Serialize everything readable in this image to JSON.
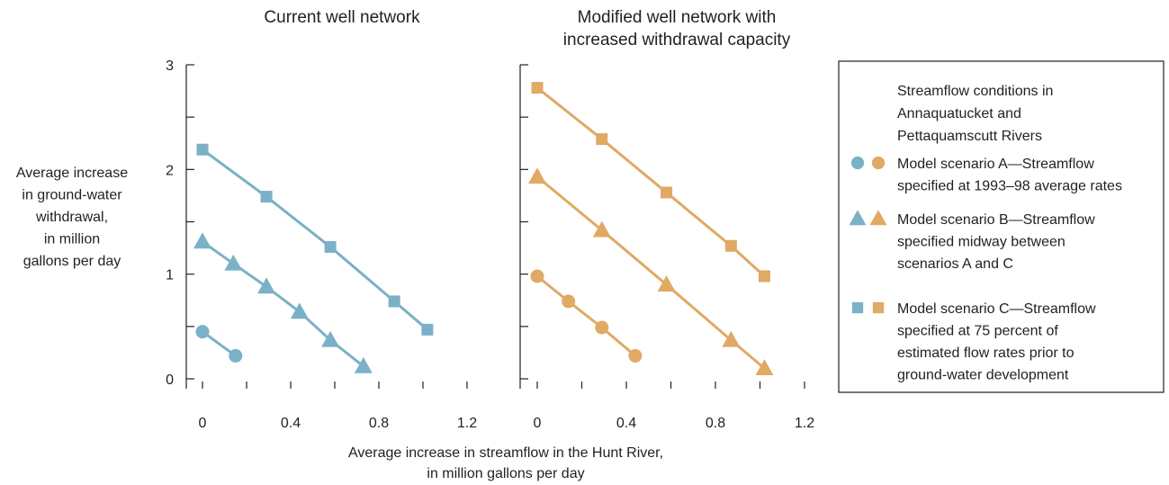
{
  "chart_data": [
    {
      "type": "line",
      "title": "Current well network",
      "xlabel": "Average increase in streamflow in the Hunt River, in million gallons per day",
      "ylabel": "Average increase in ground-water withdrawal, in million gallons per day",
      "xlim": [
        0,
        1.2
      ],
      "ylim": [
        0,
        3
      ],
      "x_ticks": [
        "0",
        "0.4",
        "0.8",
        "1.2"
      ],
      "y_ticks": [
        "0",
        "1",
        "2",
        "3"
      ],
      "grid": false,
      "series": [
        {
          "name": "Model scenario A",
          "marker": "circle",
          "x": [
            0,
            0.15
          ],
          "y": [
            0.45,
            0.22
          ]
        },
        {
          "name": "Model scenario B",
          "marker": "triangle",
          "x": [
            0,
            0.14,
            0.29,
            0.44,
            0.58,
            0.73
          ],
          "y": [
            1.31,
            1.1,
            0.88,
            0.64,
            0.37,
            0.12
          ]
        },
        {
          "name": "Model scenario C",
          "marker": "square",
          "x": [
            0,
            0.29,
            0.58,
            0.87,
            1.02
          ],
          "y": [
            2.19,
            1.74,
            1.26,
            0.74,
            0.47
          ]
        }
      ]
    },
    {
      "type": "line",
      "title": "Modified well network with increased withdrawal capacity",
      "xlabel": "Average increase in streamflow in the Hunt River, in million gallons per day",
      "ylabel": "Average increase in ground-water withdrawal, in million gallons per day",
      "xlim": [
        0,
        1.2
      ],
      "ylim": [
        0,
        3
      ],
      "x_ticks": [
        "0",
        "0.4",
        "0.8",
        "1.2"
      ],
      "grid": false,
      "series": [
        {
          "name": "Model scenario A",
          "marker": "circle",
          "x": [
            0,
            0.14,
            0.29,
            0.44
          ],
          "y": [
            0.98,
            0.74,
            0.49,
            0.22
          ]
        },
        {
          "name": "Model scenario B",
          "marker": "triangle",
          "x": [
            0,
            0.29,
            0.58,
            0.87,
            1.02
          ],
          "y": [
            1.93,
            1.42,
            0.9,
            0.37,
            0.1
          ]
        },
        {
          "name": "Model scenario C",
          "marker": "square",
          "x": [
            0,
            0.29,
            0.58,
            0.87,
            1.02
          ],
          "y": [
            2.78,
            2.29,
            1.78,
            1.27,
            0.98
          ]
        }
      ]
    }
  ],
  "colors": {
    "current": "#7ab1c7",
    "modified": "#e0a964",
    "axis": "#231f20"
  },
  "ylabel_lines": [
    "Average increase",
    "in ground-water",
    "withdrawal,",
    "in million",
    "gallons per day"
  ],
  "xlabel_lines": [
    "Average increase in streamflow in the Hunt River,",
    "in million gallons per day"
  ],
  "panel_titles": [
    [
      "Current well network"
    ],
    [
      "Modified well network with",
      "increased withdrawal capacity"
    ]
  ],
  "legend": {
    "title_lines": [
      "Streamflow conditions in",
      "Annaquatucket and",
      "Pettaquamscutt Rivers"
    ],
    "items": [
      {
        "marker": "circle",
        "lines": [
          "Model scenario A—Streamflow",
          "specified at 1993–98 average rates"
        ]
      },
      {
        "marker": "triangle",
        "lines": [
          "Model scenario B—Streamflow",
          "specified midway between",
          "scenarios A and C"
        ]
      },
      {
        "marker": "square",
        "lines": [
          "Model scenario C—Streamflow",
          "specified at 75 percent of",
          "estimated flow rates prior to",
          "ground-water development"
        ]
      }
    ]
  }
}
